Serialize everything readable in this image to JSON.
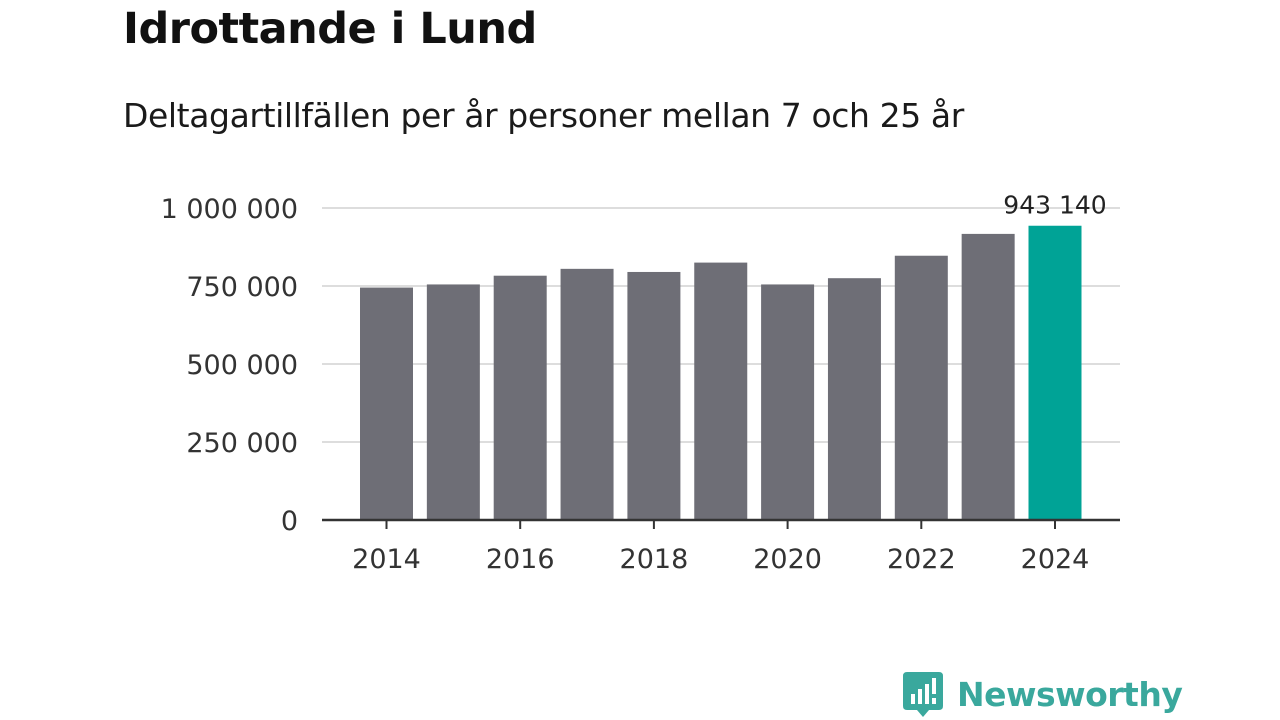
{
  "title": "Idrottande i Lund",
  "subtitle": "Deltagartillfällen per år personer mellan 7 och 25 år",
  "colors": {
    "bar": "#6e6e76",
    "highlight": "#00a396",
    "grid": "#dddddd",
    "axis": "#333333",
    "brand": "#3aa89d"
  },
  "chart_data": {
    "type": "bar",
    "categories": [
      "2014",
      "2015",
      "2016",
      "2017",
      "2018",
      "2019",
      "2020",
      "2021",
      "2022",
      "2023",
      "2024"
    ],
    "values": [
      745000,
      755000,
      783000,
      805000,
      795000,
      825000,
      755000,
      775000,
      847000,
      917000,
      943140
    ],
    "highlight_index": 10,
    "data_label": "943 140",
    "ylim": [
      0,
      1000000
    ],
    "yticks": [
      {
        "value": 0,
        "label": "0"
      },
      {
        "value": 250000,
        "label": "250 000"
      },
      {
        "value": 500000,
        "label": "500 000"
      },
      {
        "value": 750000,
        "label": "750 000"
      },
      {
        "value": 1000000,
        "label": "1 000 000"
      }
    ],
    "xtick_labels": [
      "2014",
      "2016",
      "2018",
      "2020",
      "2022",
      "2024"
    ],
    "xlabel": "",
    "ylabel": "",
    "grid": true,
    "legend": "none"
  },
  "brand": {
    "name": "Newsworthy",
    "icon": "newsworthy-logo-icon"
  }
}
